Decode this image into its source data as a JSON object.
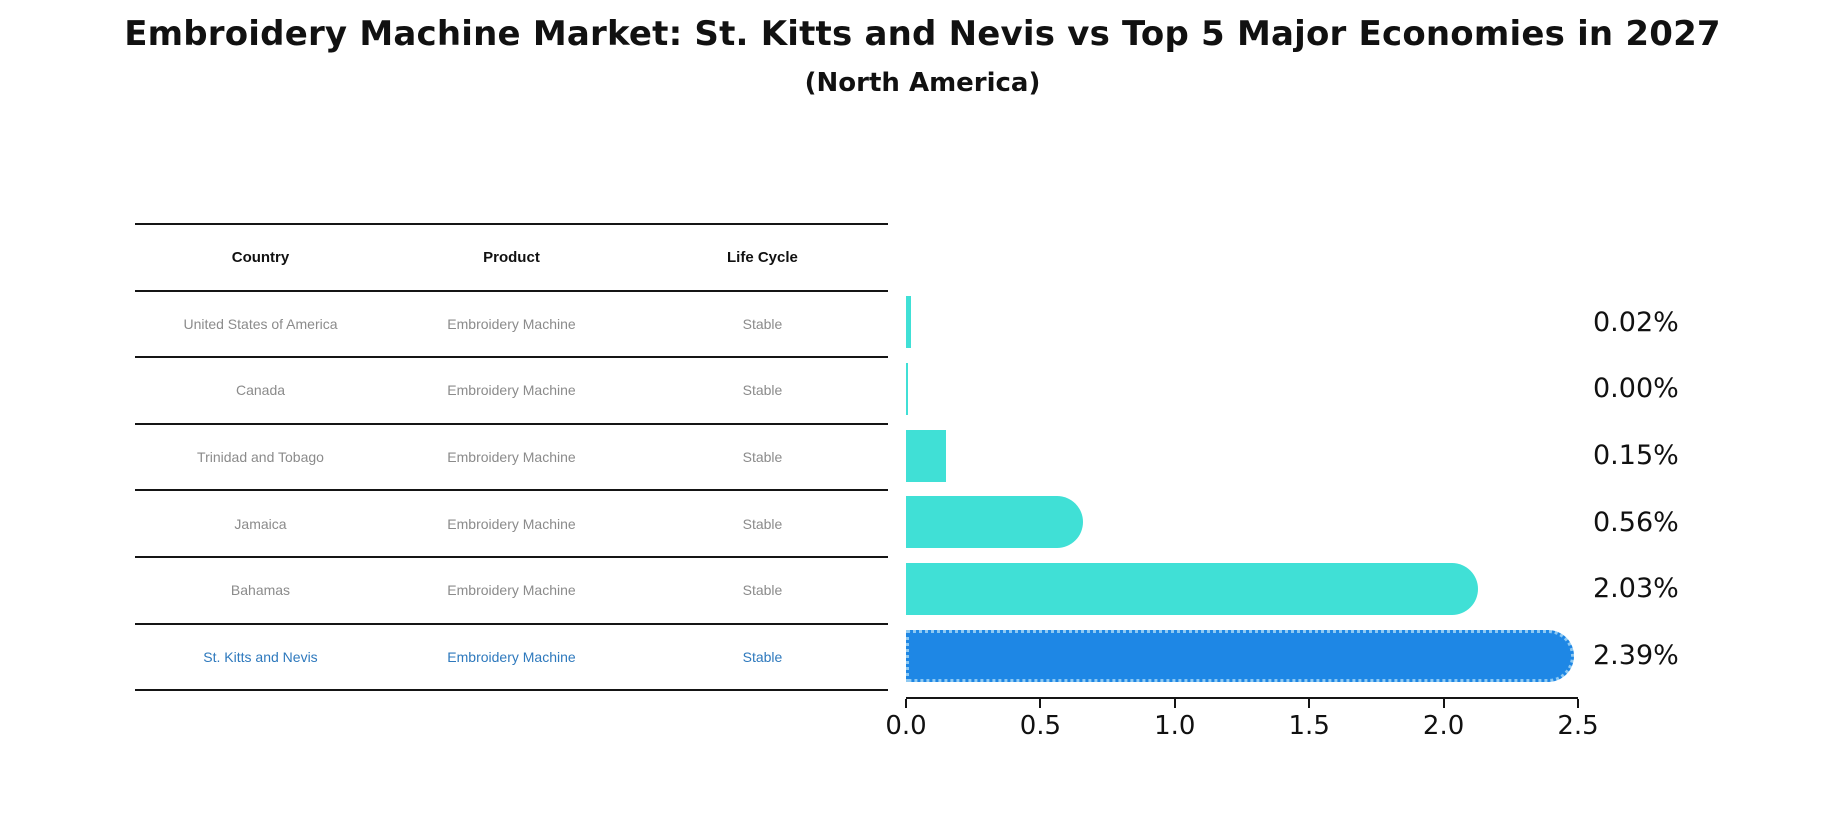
{
  "title": "Embroidery Machine Market: St. Kitts and Nevis vs Top 5 Major Economies in 2027",
  "subtitle": "(North America)",
  "table": {
    "headers": [
      "Country",
      "Product",
      "Life Cycle"
    ],
    "rows": [
      {
        "country": "United States of America",
        "product": "Embroidery Machine",
        "life_cycle": "Stable",
        "highlight": false
      },
      {
        "country": "Canada",
        "product": "Embroidery Machine",
        "life_cycle": "Stable",
        "highlight": false
      },
      {
        "country": "Trinidad and Tobago",
        "product": "Embroidery Machine",
        "life_cycle": "Stable",
        "highlight": false
      },
      {
        "country": "Jamaica",
        "product": "Embroidery Machine",
        "life_cycle": "Stable",
        "highlight": false
      },
      {
        "country": "Bahamas",
        "product": "Embroidery Machine",
        "life_cycle": "Stable",
        "highlight": false
      },
      {
        "country": "St. Kitts and Nevis",
        "product": "Embroidery Machine",
        "life_cycle": "Stable",
        "highlight": true
      }
    ]
  },
  "chart_data": {
    "type": "bar",
    "orientation": "horizontal",
    "title": "Embroidery Machine Market: St. Kitts and Nevis vs Top 5 Major Economies in 2027 (North America)",
    "categories": [
      "United States of America",
      "Canada",
      "Trinidad and Tobago",
      "Jamaica",
      "Bahamas",
      "St. Kitts and Nevis"
    ],
    "values": [
      0.02,
      0.0,
      0.15,
      0.56,
      2.03,
      2.39
    ],
    "value_labels": [
      "0.02%",
      "0.00%",
      "0.15%",
      "0.56%",
      "2.03%",
      "2.39%"
    ],
    "xlim": [
      0,
      2.5
    ],
    "x_ticks": [
      "0.0",
      "0.5",
      "1.0",
      "1.5",
      "2.0",
      "2.5"
    ],
    "grid": false,
    "legend": "none",
    "highlight_index": 5
  },
  "colors": {
    "bar": "#40E0D6",
    "highlight_bar": "#1E87E5",
    "highlight_bar_border": "#8EC9F2",
    "highlight_text": "#2E79BD",
    "muted_text": "#8B8B8B",
    "line": "#151515"
  }
}
